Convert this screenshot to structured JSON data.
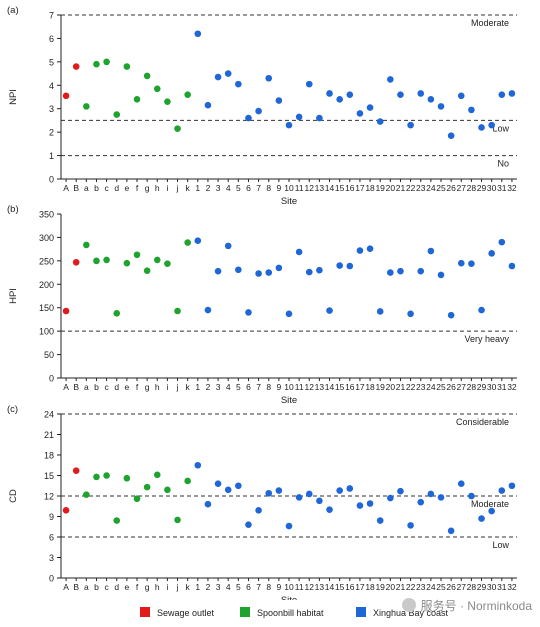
{
  "chart_data": [
    {
      "type": "scatter",
      "panel_label": "(a)",
      "ylabel": "NPI",
      "xlabel": "Site",
      "ylim": [
        0,
        7
      ],
      "yticks": [
        0,
        1,
        2,
        3,
        4,
        5,
        6,
        7
      ],
      "categories": [
        "A",
        "B",
        "a",
        "b",
        "c",
        "d",
        "e",
        "f",
        "g",
        "h",
        "i",
        "j",
        "k",
        "1",
        "2",
        "3",
        "4",
        "5",
        "6",
        "7",
        "8",
        "9",
        "10",
        "11",
        "12",
        "13",
        "14",
        "15",
        "16",
        "17",
        "18",
        "19",
        "20",
        "21",
        "22",
        "23",
        "24",
        "25",
        "26",
        "27",
        "28",
        "29",
        "30",
        "31",
        "32"
      ],
      "values": [
        3.55,
        4.8,
        3.1,
        4.9,
        5.0,
        2.75,
        4.8,
        3.4,
        4.4,
        3.85,
        3.3,
        2.15,
        3.6,
        6.2,
        3.15,
        4.35,
        4.5,
        4.05,
        2.6,
        2.9,
        4.3,
        3.35,
        2.3,
        2.65,
        4.05,
        2.6,
        3.65,
        3.4,
        3.6,
        2.8,
        3.05,
        2.45,
        4.25,
        3.6,
        2.3,
        3.65,
        3.4,
        3.1,
        1.85,
        3.55,
        2.95,
        2.2,
        2.3,
        3.6,
        3.65
      ],
      "groups": [
        "s",
        "s",
        "h",
        "h",
        "h",
        "h",
        "h",
        "h",
        "h",
        "h",
        "h",
        "h",
        "h",
        "c",
        "c",
        "c",
        "c",
        "c",
        "c",
        "c",
        "c",
        "c",
        "c",
        "c",
        "c",
        "c",
        "c",
        "c",
        "c",
        "c",
        "c",
        "c",
        "c",
        "c",
        "c",
        "c",
        "c",
        "c",
        "c",
        "c",
        "c",
        "c",
        "c",
        "c",
        "c"
      ],
      "thresholds": [
        {
          "value": 7,
          "label": "Moderate"
        },
        {
          "value": 2.5,
          "label": "Low"
        },
        {
          "value": 1,
          "label": "No"
        }
      ]
    },
    {
      "type": "scatter",
      "panel_label": "(b)",
      "ylabel": "HPI",
      "xlabel": "Site",
      "ylim": [
        0,
        350
      ],
      "yticks": [
        0,
        50,
        100,
        150,
        200,
        250,
        300,
        350
      ],
      "categories": [
        "A",
        "B",
        "a",
        "b",
        "c",
        "d",
        "e",
        "f",
        "g",
        "h",
        "i",
        "j",
        "k",
        "1",
        "2",
        "3",
        "4",
        "5",
        "6",
        "7",
        "8",
        "9",
        "10",
        "11",
        "12",
        "13",
        "14",
        "15",
        "16",
        "17",
        "18",
        "19",
        "20",
        "21",
        "22",
        "23",
        "24",
        "25",
        "26",
        "27",
        "28",
        "29",
        "30",
        "31",
        "32"
      ],
      "values": [
        143,
        247,
        284,
        250,
        252,
        138,
        245,
        263,
        229,
        252,
        244,
        143,
        289,
        293,
        145,
        228,
        282,
        231,
        140,
        223,
        225,
        235,
        137,
        269,
        226,
        230,
        144,
        240,
        239,
        272,
        276,
        142,
        225,
        228,
        137,
        228,
        271,
        220,
        134,
        245,
        244,
        145,
        266,
        290,
        239
      ],
      "groups": [
        "s",
        "s",
        "h",
        "h",
        "h",
        "h",
        "h",
        "h",
        "h",
        "h",
        "h",
        "h",
        "h",
        "c",
        "c",
        "c",
        "c",
        "c",
        "c",
        "c",
        "c",
        "c",
        "c",
        "c",
        "c",
        "c",
        "c",
        "c",
        "c",
        "c",
        "c",
        "c",
        "c",
        "c",
        "c",
        "c",
        "c",
        "c",
        "c",
        "c",
        "c",
        "c",
        "c",
        "c",
        "c"
      ],
      "thresholds": [
        {
          "value": 100,
          "label": "Very heavy"
        }
      ]
    },
    {
      "type": "scatter",
      "panel_label": "(c)",
      "ylabel": "CD",
      "xlabel": "Site",
      "ylim": [
        0,
        24
      ],
      "yticks": [
        0,
        3,
        6,
        9,
        12,
        15,
        18,
        21,
        24
      ],
      "categories": [
        "A",
        "B",
        "a",
        "b",
        "c",
        "d",
        "e",
        "f",
        "g",
        "h",
        "i",
        "j",
        "k",
        "1",
        "2",
        "3",
        "4",
        "5",
        "6",
        "7",
        "8",
        "9",
        "10",
        "11",
        "12",
        "13",
        "14",
        "15",
        "16",
        "17",
        "18",
        "19",
        "20",
        "21",
        "22",
        "23",
        "24",
        "25",
        "26",
        "27",
        "28",
        "29",
        "30",
        "31",
        "32"
      ],
      "values": [
        9.9,
        15.7,
        12.2,
        14.8,
        15.0,
        8.4,
        14.6,
        11.6,
        13.3,
        15.1,
        12.9,
        8.5,
        14.2,
        16.5,
        10.8,
        13.8,
        12.9,
        13.5,
        7.8,
        9.9,
        12.4,
        12.8,
        7.6,
        11.8,
        12.3,
        11.3,
        10.0,
        12.8,
        13.1,
        10.6,
        10.9,
        8.4,
        11.7,
        12.7,
        7.7,
        11.1,
        12.3,
        11.8,
        6.9,
        13.8,
        12.0,
        8.7,
        9.8,
        12.8,
        13.5
      ],
      "groups": [
        "s",
        "s",
        "h",
        "h",
        "h",
        "h",
        "h",
        "h",
        "h",
        "h",
        "h",
        "h",
        "h",
        "c",
        "c",
        "c",
        "c",
        "c",
        "c",
        "c",
        "c",
        "c",
        "c",
        "c",
        "c",
        "c",
        "c",
        "c",
        "c",
        "c",
        "c",
        "c",
        "c",
        "c",
        "c",
        "c",
        "c",
        "c",
        "c",
        "c",
        "c",
        "c",
        "c",
        "c",
        "c"
      ],
      "thresholds": [
        {
          "value": 24,
          "label": "Considerable"
        },
        {
          "value": 12,
          "label": "Moderate"
        },
        {
          "value": 6,
          "label": "Low"
        }
      ]
    }
  ],
  "legend": {
    "placement": "bottom",
    "items": [
      {
        "key": "s",
        "label": "Sewage outlet",
        "color": "#e31a1c"
      },
      {
        "key": "h",
        "label": "Spoonbill habitat",
        "color": "#1fa32f"
      },
      {
        "key": "c",
        "label": "Xinghua Bay coast",
        "color": "#1f66d6"
      }
    ]
  },
  "watermark": {
    "text": "服务号 · Norminkoda",
    "icon": "wechat-logo-icon"
  }
}
